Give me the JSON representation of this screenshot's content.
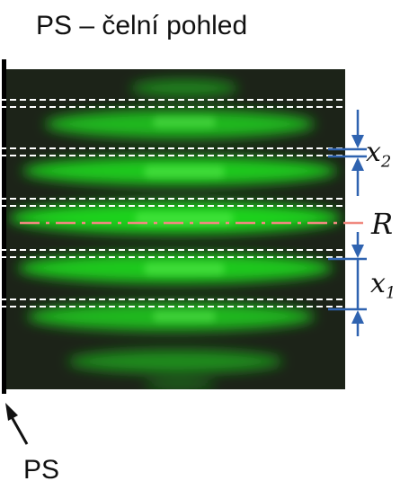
{
  "title": "PS – čelní pohled",
  "labels": {
    "ps": "PS",
    "reference": "R",
    "x2_base": "x",
    "x2_sub": "2",
    "x1_base": "x",
    "x1_sub": "1"
  },
  "colors": {
    "fringe": "#1ed21e",
    "background": "#1c2318",
    "dashed_lines": "#ffffff",
    "reference_line": "#f08a80",
    "dimension_arrows": "#2f63b0",
    "ps_bar": "#000000",
    "text": "#111111"
  }
}
